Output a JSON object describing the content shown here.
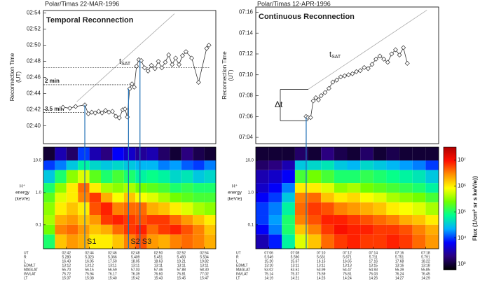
{
  "chart_data": [
    {
      "type": "line",
      "title": "Polar/Timas 22-MAR-1996",
      "subtitle": "Temporal Reconnection",
      "y_label_lines": [
        "Reconnection Time",
        "(UT)"
      ],
      "x": [
        41.7,
        42.3,
        42.8,
        43.6,
        43.9,
        44.2,
        44.5,
        44.8,
        45.1,
        45.4,
        45.7,
        46.0,
        46.3,
        46.6,
        46.9,
        47.1,
        47.3,
        47.5,
        47.7,
        47.9,
        48.1,
        48.3,
        48.5,
        48.8,
        49.1,
        49.4,
        49.7,
        50.0,
        50.3,
        50.6,
        50.9,
        51.2,
        51.5,
        51.8,
        52.1,
        52.4,
        52.9,
        53.5,
        54.2,
        54.4
      ],
      "values": [
        42.3,
        42.2,
        42.4,
        42.6,
        41.5,
        41.7,
        41.6,
        41.8,
        41.6,
        41.9,
        41.7,
        41.8,
        41.2,
        41.0,
        42.0,
        42.1,
        41.1,
        44.6,
        45.2,
        44.8,
        47.4,
        48.2,
        48.1,
        47.2,
        46.8,
        47.5,
        47.1,
        48.0,
        47.2,
        47.9,
        48.8,
        47.6,
        48.4,
        47.6,
        48.7,
        49.2,
        48.4,
        45.4,
        49.6,
        50.0
      ],
      "color": "#333333",
      "xlim": [
        40,
        55
      ],
      "ylim": [
        37.8,
        54.3
      ],
      "yticks": [
        {
          "value": 40,
          "label": "02:40"
        },
        {
          "value": 42,
          "label": "02:42"
        },
        {
          "value": 44,
          "label": "02:44"
        },
        {
          "value": 46,
          "label": "02:46"
        },
        {
          "value": 48,
          "label": "02:48"
        },
        {
          "value": 50,
          "label": "02:50"
        },
        {
          "value": 52,
          "label": "02:52"
        },
        {
          "value": 54,
          "label": "02:54"
        }
      ],
      "reference_levels": [
        41.65,
        45.1,
        47.2
      ],
      "annotations": [
        {
          "text": "3.5 min"
        },
        {
          "text": "2 min"
        }
      ],
      "tsat_label": {
        "text": "t",
        "sub": "SAT"
      },
      "tsat_line": {
        "x": [
          42.9,
          51.4
        ],
        "y": [
          43.0,
          53.9
        ]
      },
      "marker_lines": [
        43.6,
        47.4,
        48.4
      ],
      "marker_color": "#1f6fb5"
    },
    {
      "type": "heatmap",
      "y_label_lines": [
        "H⁺",
        "energy",
        "(keV/e)"
      ],
      "log_scale": true,
      "xlim": [
        40,
        55
      ],
      "ylim": [
        0.018,
        26
      ],
      "yticks": [
        {
          "value": 10,
          "label": "10.0"
        },
        {
          "value": 1,
          "label": "1.0"
        },
        0.1
      ],
      "xticks": [
        {
          "value": 42,
          "label": "02:42"
        },
        {
          "value": 44,
          "label": "02:44"
        },
        {
          "value": 46,
          "label": "02:46"
        },
        {
          "value": 48,
          "label": "02:48"
        },
        {
          "value": 50,
          "label": "02:50"
        },
        {
          "value": 52,
          "label": "02:52"
        },
        {
          "value": 54,
          "label": "02:54"
        }
      ],
      "time_edges": [
        40,
        41,
        42,
        43,
        44,
        45,
        46,
        47,
        48,
        49,
        50,
        51,
        52,
        53,
        54,
        55
      ],
      "energy_edges": [
        26,
        10,
        5,
        2,
        1,
        0.5,
        0.2,
        0.1,
        0.05,
        0.018
      ],
      "z": [
        [
          3.0,
          3.5,
          3.2,
          4.0,
          3.5,
          3.3,
          3.8,
          3.6,
          3.4,
          3.5,
          3.2,
          3.0,
          3.3,
          3.1,
          3.0
        ],
        [
          4.0,
          4.2,
          4.5,
          4.8,
          4.6,
          4.5,
          4.6,
          4.5,
          4.4,
          4.4,
          4.2,
          4.3,
          4.1,
          4.0,
          4.2
        ],
        [
          4.5,
          5.0,
          5.5,
          5.8,
          5.3,
          5.0,
          5.2,
          5.0,
          4.8,
          4.9,
          4.8,
          4.6,
          4.7,
          4.5,
          4.6
        ],
        [
          5.0,
          5.5,
          6.0,
          6.6,
          6.0,
          5.6,
          5.5,
          5.6,
          5.4,
          5.3,
          5.2,
          5.0,
          5.1,
          5.0,
          5.0
        ],
        [
          5.3,
          5.8,
          6.0,
          6.5,
          6.8,
          6.3,
          5.9,
          6.2,
          5.9,
          5.8,
          5.6,
          5.4,
          5.3,
          5.2,
          5.2
        ],
        [
          5.5,
          6.0,
          6.2,
          6.0,
          6.7,
          6.9,
          6.5,
          6.6,
          6.6,
          6.3,
          6.2,
          6.0,
          5.8,
          5.6,
          5.5
        ],
        [
          5.6,
          6.3,
          6.4,
          6.2,
          6.4,
          6.8,
          6.9,
          6.8,
          6.7,
          6.8,
          6.8,
          6.6,
          6.4,
          6.2,
          6.0
        ],
        [
          5.4,
          6.5,
          6.6,
          6.4,
          6.2,
          6.3,
          6.6,
          6.8,
          6.9,
          6.6,
          6.8,
          6.9,
          6.7,
          6.5,
          6.2
        ],
        [
          5.0,
          6.2,
          6.4,
          6.3,
          6.0,
          6.0,
          6.2,
          6.5,
          6.7,
          6.4,
          6.3,
          6.5,
          6.6,
          6.5,
          6.3
        ]
      ],
      "segment_labels": [
        "S1",
        "S2",
        "S3"
      ],
      "ephemeris_time_label": "UT",
      "ephemeris_rows": [
        {
          "label": "R",
          "values": [
            "5.280",
            "5.323",
            "5.366",
            "5.409",
            "5.451",
            "5.493",
            "5.534"
          ]
        },
        {
          "label": "L",
          "values": [
            "16.43",
            "16.95",
            "17.50",
            "18.05",
            "18.63",
            "19.21",
            "19.82"
          ]
        },
        {
          "label": "EDMLT",
          "values": [
            "13:12",
            "13:12",
            "13:11",
            "13:11",
            "13:11",
            "13:11",
            "13:11"
          ]
        },
        {
          "label": "MAGLAT",
          "values": [
            "55.70",
            "56.15",
            "56.59",
            "57.03",
            "57.46",
            "57.88",
            "58.30"
          ]
        },
        {
          "label": "INVLAT",
          "values": [
            "75.72",
            "75.94",
            "76.17",
            "76.39",
            "76.60",
            "76.81",
            "77.02"
          ]
        },
        {
          "label": "LT",
          "values": [
            "15:37",
            "15:38",
            "15:40",
            "15:42",
            "15:43",
            "15:45",
            "15:47"
          ]
        }
      ]
    },
    {
      "type": "line",
      "title": "Polar/Timas 12-APR-1996",
      "subtitle": "Continuous Reconnection",
      "y_label_lines": [
        "Reconnection Time",
        "(UT)"
      ],
      "x": [
        8.85,
        9.0,
        9.2,
        9.4,
        9.6,
        9.8,
        10.0,
        10.3,
        10.6,
        10.9,
        11.2,
        11.5,
        11.8,
        12.1,
        12.4,
        12.7,
        13.0,
        13.3,
        13.6,
        13.9,
        14.2,
        14.5,
        14.8,
        15.1,
        15.4,
        15.7,
        16.0,
        16.3,
        16.6
      ],
      "values": [
        6.0,
        5.9,
        5.9,
        7.5,
        7.8,
        7.6,
        8.0,
        8.3,
        8.7,
        9.3,
        9.5,
        9.8,
        9.9,
        10.0,
        10.1,
        10.3,
        10.4,
        10.7,
        10.6,
        11.0,
        11.5,
        11.8,
        11.5,
        11.2,
        12.0,
        12.4,
        11.9,
        12.6,
        11.1
      ],
      "color": "#333333",
      "xlim": [
        5,
        19
      ],
      "ylim": [
        3.4,
        16.5
      ],
      "yticks": [
        {
          "value": 4,
          "label": "07:04"
        },
        {
          "value": 6,
          "label": "07:06"
        },
        {
          "value": 8,
          "label": "07:08"
        },
        {
          "value": 10,
          "label": "07:10"
        },
        {
          "value": 12,
          "label": "07:12"
        },
        {
          "value": 14,
          "label": "07:14"
        },
        {
          "value": 16,
          "label": "07:16"
        }
      ],
      "reference_levels": [
        8.6,
        5.6
      ],
      "annotations": [
        {
          "text": "Δt"
        }
      ],
      "tsat_label": {
        "text": "t",
        "sub": "SAT"
      },
      "tsat_line": {
        "x": [
          9.0,
          18.1
        ],
        "y": [
          8.6,
          16.2
        ]
      },
      "marker_lines": [
        8.86
      ],
      "marker_color": "#1f6fb5"
    },
    {
      "type": "heatmap",
      "y_label_lines": [
        "H⁺",
        "energy",
        "(keV/e)"
      ],
      "log_scale": true,
      "xlim": [
        5,
        19
      ],
      "ylim": [
        0.018,
        26
      ],
      "yticks": [
        {
          "value": 10,
          "label": "10.0"
        },
        {
          "value": 1,
          "label": "1.0"
        },
        0.1
      ],
      "xticks": [
        {
          "value": 6,
          "label": "07:06"
        },
        {
          "value": 8,
          "label": "07:08"
        },
        {
          "value": 10,
          "label": "07:10"
        },
        {
          "value": 12,
          "label": "07:12"
        },
        {
          "value": 14,
          "label": "07:14"
        },
        {
          "value": 16,
          "label": "07:16"
        },
        {
          "value": 18,
          "label": "07:18"
        }
      ],
      "time_edges": [
        5,
        6,
        7,
        8,
        9,
        10,
        11,
        12,
        13,
        14,
        15,
        16,
        17,
        18,
        19
      ],
      "energy_edges": [
        26,
        10,
        5,
        2,
        1,
        0.5,
        0.2,
        0.1,
        0.05,
        0.018
      ],
      "z": [
        [
          3.0,
          3.0,
          3.0,
          3.2,
          3.0,
          3.3,
          3.1,
          3.0,
          3.2,
          3.0,
          3.1,
          3.0,
          3.0,
          3.0
        ],
        [
          3.2,
          3.3,
          3.5,
          4.5,
          4.6,
          4.7,
          4.5,
          4.4,
          4.6,
          4.5,
          4.4,
          4.3,
          4.2,
          4.0
        ],
        [
          3.5,
          3.6,
          3.8,
          5.2,
          5.4,
          5.2,
          5.0,
          5.0,
          5.1,
          5.0,
          4.9,
          4.8,
          4.7,
          4.5
        ],
        [
          3.6,
          3.8,
          4.2,
          6.0,
          6.0,
          5.8,
          5.5,
          5.6,
          5.4,
          5.3,
          5.2,
          5.1,
          5.0,
          4.8
        ],
        [
          3.8,
          4.0,
          4.5,
          6.5,
          6.6,
          6.2,
          6.0,
          6.1,
          5.9,
          5.8,
          5.6,
          5.5,
          5.4,
          5.2
        ],
        [
          4.0,
          4.2,
          4.8,
          6.6,
          6.8,
          6.7,
          6.5,
          6.4,
          6.3,
          6.2,
          6.0,
          5.9,
          5.8,
          5.6
        ],
        [
          4.0,
          4.3,
          5.0,
          6.5,
          6.7,
          6.9,
          6.9,
          6.8,
          6.7,
          6.6,
          6.5,
          6.3,
          6.2,
          6.0
        ],
        [
          3.8,
          4.2,
          5.0,
          6.2,
          6.5,
          6.8,
          7.0,
          6.9,
          6.9,
          6.8,
          6.8,
          6.7,
          6.5,
          6.3
        ],
        [
          3.5,
          3.9,
          4.8,
          5.8,
          6.2,
          6.6,
          6.8,
          6.9,
          6.8,
          6.8,
          6.9,
          6.8,
          6.6,
          6.4
        ]
      ],
      "segment_labels": [],
      "ephemeris_time_label": "UT",
      "ephemeris_rows": [
        {
          "label": "R",
          "values": [
            "5.549",
            "5.590",
            "5.631",
            "5.671",
            "5.711",
            "5.751",
            "5.791"
          ]
        },
        {
          "label": "L",
          "values": [
            "15.20",
            "15.67",
            "16.15",
            "16.65",
            "17.16",
            "17.68",
            "18.22"
          ]
        },
        {
          "label": "EDMLT",
          "values": [
            "13:10",
            "13:11",
            "13:11",
            "13:13",
            "13:15",
            "13:16",
            "13:18"
          ]
        },
        {
          "label": "MAGLAT",
          "values": [
            "53.02",
            "53.51",
            "53.99",
            "54.47",
            "54.93",
            "55.39",
            "55.85"
          ]
        },
        {
          "label": "INVLAT",
          "values": [
            "75.14",
            "75.37",
            "75.59",
            "75.81",
            "76.03",
            "76.24",
            "76.45"
          ]
        },
        {
          "label": "LT",
          "values": [
            "14:19",
            "14:21",
            "14:23",
            "14:24",
            "14:26",
            "14:27",
            "14:29"
          ]
        }
      ]
    },
    {
      "type": "colorbar",
      "label": "Flux (1/cm² sr s keV/e))",
      "zlim": [
        2.78,
        7.49
      ],
      "ticks": [
        {
          "value": 7,
          "label": "10⁷"
        },
        {
          "value": 6,
          "label": "10⁶"
        },
        {
          "value": 5,
          "label": "10⁵"
        },
        {
          "value": 4,
          "label": "10⁴"
        },
        {
          "value": 3,
          "label": "10³"
        }
      ],
      "colormap": [
        "#000000",
        "#2a0080",
        "#0000ff",
        "#00b0ff",
        "#00ff90",
        "#70ff00",
        "#ffff00",
        "#ff9000",
        "#ff1000",
        "#b00000"
      ]
    }
  ]
}
